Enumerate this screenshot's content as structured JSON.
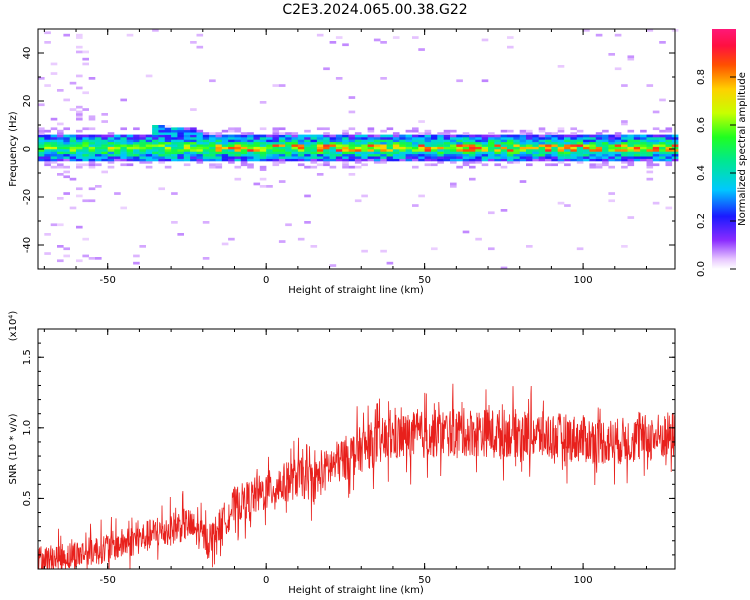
{
  "title": "C2E3.2024.065.00.38.G22",
  "colors": {
    "snr_line": "#e8201c",
    "axis": "#000000",
    "background": "#ffffff"
  },
  "chart_data": [
    {
      "type": "heatmap",
      "title": "C2E3.2024.065.00.38.G22",
      "xlabel": "Height of straight line (km)",
      "ylabel": "Frequency (Hz)",
      "xlim": [
        -72,
        129
      ],
      "ylim": [
        -50,
        50
      ],
      "x_ticks": [
        -50,
        0,
        50,
        100
      ],
      "y_ticks": [
        -40,
        -20,
        0,
        20,
        40
      ],
      "colorbar": {
        "label": "Normalized spectral amplitude",
        "range": [
          0,
          1
        ],
        "ticks": [
          "0.0",
          "0.2",
          "0.4",
          "0.6",
          "0.8"
        ],
        "colormap": "rainbow (white-violet-blue-cyan-green-yellow-red-magenta)"
      },
      "ridge": {
        "description_values": "band centred near 0 Hz across all heights",
        "center_hz": 0,
        "half_width_hz": 4,
        "peak_amplitude": 0.9,
        "bump": {
          "x_range": [
            -38,
            -20
          ],
          "max_freq_hz": 10
        }
      }
    },
    {
      "type": "line",
      "xlabel": "Height of straight line (km)",
      "ylabel": "SNR (10 * v/v)",
      "y_multiplier": "(x10⁴)",
      "xlim": [
        -72,
        129
      ],
      "ylim": [
        0,
        1.7
      ],
      "x_ticks": [
        -50,
        0,
        50,
        100
      ],
      "y_ticks": [
        0.5,
        1.0,
        1.5
      ],
      "y_tick_labels": [
        "0.5",
        "1.0",
        "1.5"
      ],
      "series": [
        {
          "trend": {
            "x": [
              -72,
              -60,
              -45,
              -35,
              -25,
              -18,
              -10,
              0,
              10,
              15,
              20,
              30,
              40,
              60,
              80,
              100,
              110,
              129
            ],
            "y": [
              0.06,
              0.1,
              0.18,
              0.25,
              0.32,
              0.2,
              0.45,
              0.55,
              0.65,
              0.62,
              0.72,
              0.85,
              0.93,
              0.97,
              0.96,
              0.92,
              0.9,
              0.95
            ]
          },
          "noise_amplitude": 0.2
        }
      ]
    }
  ]
}
